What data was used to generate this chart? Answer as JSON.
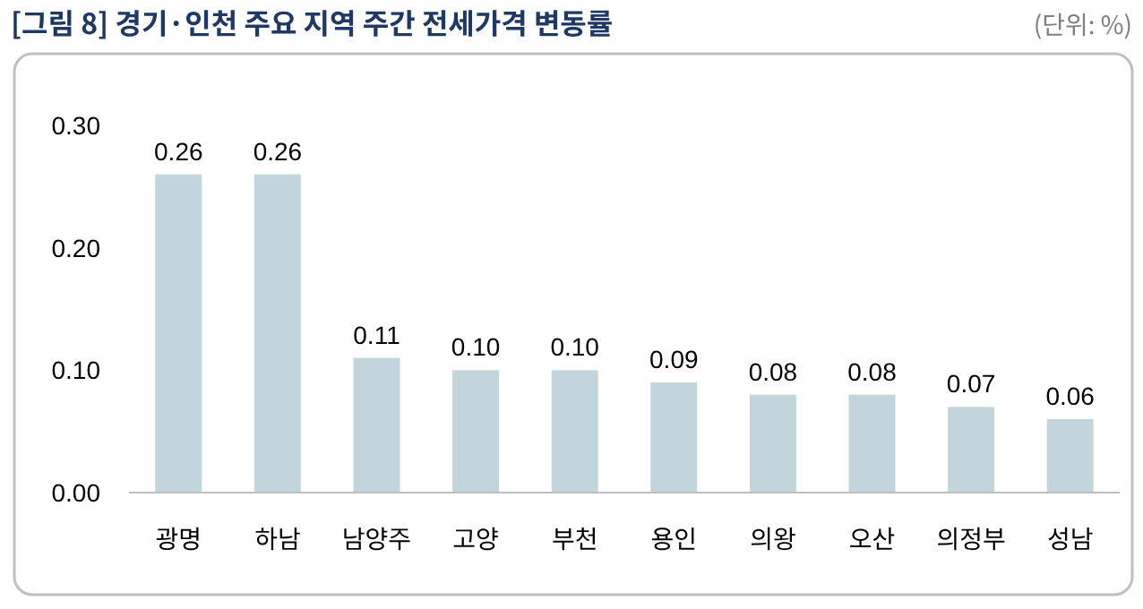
{
  "chart_data": {
    "type": "bar",
    "title": "[그림 8] 경기·인천 주요 지역 주간 전세가격 변동률",
    "annotations": [
      "(단위: %)"
    ],
    "categories": [
      "광명",
      "하남",
      "남양주",
      "고양",
      "부천",
      "용인",
      "의왕",
      "오산",
      "의정부",
      "성남"
    ],
    "values": [
      0.26,
      0.26,
      0.11,
      0.1,
      0.1,
      0.09,
      0.08,
      0.08,
      0.07,
      0.06
    ],
    "value_labels": [
      "0.26",
      "0.26",
      "0.11",
      "0.10",
      "0.10",
      "0.09",
      "0.08",
      "0.08",
      "0.07",
      "0.06"
    ],
    "color": "#c3d5dc",
    "ylim": [
      0,
      0.3
    ],
    "yticks": [
      {
        "value": 0,
        "label": "0.00"
      },
      {
        "value": 0.1,
        "label": "0.10"
      },
      {
        "value": 0.2,
        "label": "0.20"
      },
      {
        "value": 0.3,
        "label": "0.30"
      }
    ]
  }
}
